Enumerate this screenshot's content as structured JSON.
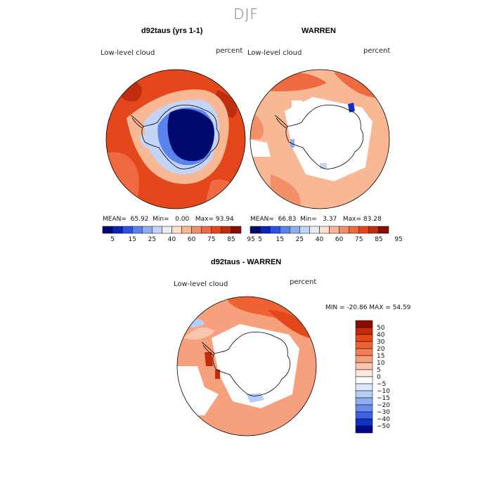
{
  "page": {
    "season": "DJF"
  },
  "colors": {
    "seq": [
      "#000a6e",
      "#0d24b8",
      "#2d52e6",
      "#5a82ee",
      "#8eaef3",
      "#c2d4f8",
      "#eaeef4",
      "#fde0cc",
      "#f8b894",
      "#f49068",
      "#ef6a40",
      "#e4471c",
      "#c02d0e",
      "#8c0c02"
    ],
    "div": [
      "#8c0c02",
      "#c42a08",
      "#e3481b",
      "#ee6233",
      "#f37e54",
      "#f7a07e",
      "#fbc6ae",
      "#fde8dc",
      "#ffffff",
      "#dbe8fb",
      "#b6cef6",
      "#8eaef3",
      "#6a8eee",
      "#3d62e6",
      "#1330c4",
      "#020a8a"
    ]
  },
  "chart_data": [
    {
      "type": "heatmap",
      "projection": "south-polar-stereographic",
      "title": "d92taus (yrs 1-1)",
      "left_label": "Low-level cloud",
      "right_label": "percent",
      "stats": {
        "mean_label": "MEAN=",
        "mean": "65.92",
        "min_label": "Min=",
        "min": "0.00",
        "max_label": "Max=",
        "max": "93.94"
      },
      "colorbar": {
        "ticks": [
          "5",
          "15",
          "25",
          "40",
          "60",
          "75",
          "85",
          "95"
        ]
      }
    },
    {
      "type": "heatmap",
      "projection": "south-polar-stereographic",
      "title": "WARREN",
      "left_label": "Low-level cloud",
      "right_label": "percent",
      "stats": {
        "mean_label": "MEAN=",
        "mean": "66.83",
        "min_label": "Min=",
        "min": "3.37",
        "max_label": "Max=",
        "max": "83.28"
      },
      "colorbar": {
        "ticks": [
          "5",
          "15",
          "25",
          "40",
          "60",
          "75",
          "85",
          "95"
        ]
      }
    },
    {
      "type": "heatmap",
      "projection": "south-polar-stereographic",
      "title": "d92taus - WARREN",
      "left_label": "Low-level cloud",
      "right_label": "percent",
      "minmax": "MIN = -20.86 MAX =  54.59",
      "colorbar": {
        "ticks": [
          "50",
          "40",
          "30",
          "20",
          "15",
          "10",
          "5",
          "0",
          "−5",
          "−10",
          "−15",
          "−20",
          "−30",
          "−40",
          "−50"
        ]
      }
    }
  ]
}
